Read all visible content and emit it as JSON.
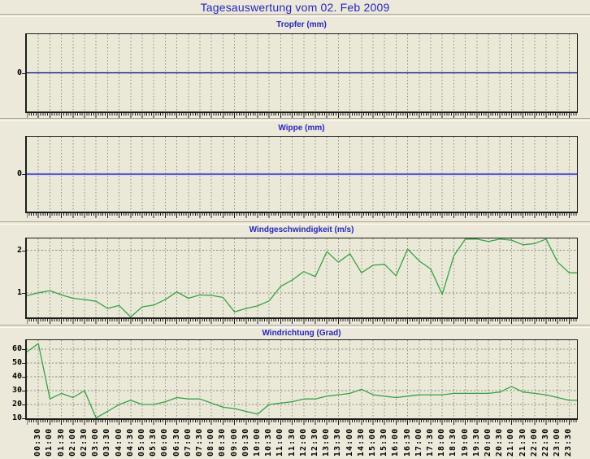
{
  "page": {
    "title": "Tagesauswertung vom 02. Feb 2009"
  },
  "colors": {
    "background": "#ece9da",
    "plot_background": "#eae9d8",
    "title_blue": "#2525c4",
    "grid": "#908e80",
    "tropfer_line": "#000090",
    "wippe_line": "#5b5bd7",
    "wind_line": "#35a244",
    "axis_text": "#000000"
  },
  "time_axis": {
    "tick_labels": [
      "00:30",
      "01:00",
      "01:30",
      "02:00",
      "02:30",
      "03:00",
      "03:30",
      "04:00",
      "04:30",
      "05:00",
      "05:30",
      "06:00",
      "06:30",
      "07:00",
      "07:30",
      "08:00",
      "08:30",
      "09:00",
      "09:30",
      "10:00",
      "10:30",
      "11:00",
      "11:30",
      "12:00",
      "12:30",
      "13:00",
      "13:30",
      "14:00",
      "14:30",
      "15:00",
      "15:30",
      "16:00",
      "16:30",
      "17:00",
      "17:30",
      "18:00",
      "18:30",
      "19:00",
      "19:30",
      "20:00",
      "20:30",
      "21:00",
      "21:30",
      "22:00",
      "22:30",
      "23:00",
      "23:30"
    ]
  },
  "chart_data": [
    {
      "id": "tropfer",
      "type": "line",
      "title": "Tropfer (mm)",
      "x_start": "00:00",
      "x_interval_minutes": 30,
      "constant_value": 0,
      "ylim": [
        -1,
        1
      ],
      "yticks": [
        0
      ],
      "grid": "vertical-only",
      "line_color_key": "tropfer_line",
      "line_width": 1.2
    },
    {
      "id": "wippe",
      "type": "line",
      "title": "Wippe (mm)",
      "x_start": "00:00",
      "x_interval_minutes": 30,
      "constant_value": 0,
      "ylim": [
        -1,
        1
      ],
      "yticks": [
        0
      ],
      "grid": "vertical-only",
      "line_color_key": "wippe_line",
      "line_width": 2.2
    },
    {
      "id": "windgeschwindigkeit",
      "type": "line",
      "title": "Windgeschwindigkeit (m/s)",
      "x_start": "00:00",
      "x_interval_minutes": 30,
      "values": [
        0.93,
        1.0,
        1.05,
        0.95,
        0.87,
        0.84,
        0.8,
        0.63,
        0.7,
        0.42,
        0.67,
        0.71,
        0.84,
        1.02,
        0.87,
        0.95,
        0.94,
        0.89,
        0.55,
        0.63,
        0.69,
        0.81,
        1.15,
        1.3,
        1.5,
        1.38,
        1.97,
        1.72,
        1.92,
        1.47,
        1.65,
        1.67,
        1.4,
        2.03,
        1.75,
        1.56,
        0.96,
        1.87,
        2.28,
        2.28,
        2.21,
        2.27,
        2.24,
        2.13,
        2.16,
        2.27,
        1.72,
        1.47
      ],
      "ylim": [
        0.42,
        2.28
      ],
      "yticks": [
        1,
        2
      ],
      "grid": "both",
      "line_color_key": "wind_line",
      "line_width": 1.3
    },
    {
      "id": "windrichtung",
      "type": "line",
      "title": "Windrichtung (Grad)",
      "x_start": "00:00",
      "x_interval_minutes": 30,
      "values": [
        58,
        64,
        24,
        28,
        25,
        30,
        10,
        15,
        20,
        23,
        20,
        20,
        22,
        25,
        24,
        24,
        21,
        18,
        17,
        15,
        13,
        20,
        21,
        22,
        24,
        24,
        26,
        27,
        28,
        31,
        27,
        26,
        25,
        26,
        27,
        27,
        27,
        28,
        28,
        28,
        28,
        29,
        33,
        29,
        28,
        27,
        25,
        23
      ],
      "ylim": [
        10,
        66.5
      ],
      "yticks": [
        10,
        20,
        30,
        40,
        50,
        60
      ],
      "grid": "both",
      "line_color_key": "wind_line",
      "line_width": 1.3
    }
  ]
}
